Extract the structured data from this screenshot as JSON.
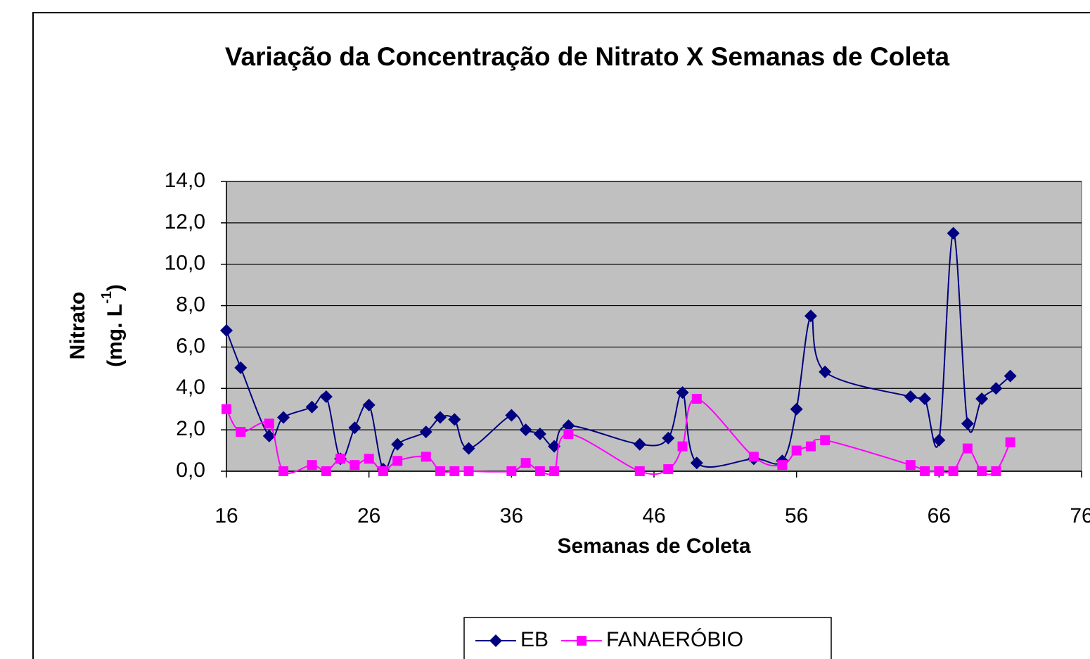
{
  "chart_data": {
    "type": "line",
    "title": "Variação da Concentração de Nitrato X Semanas de Coleta",
    "xlabel": "Semanas de Coleta",
    "ylabel": "Nitrato",
    "ylabel_unit": "(mg. L",
    "ylabel_sup": "-1",
    "ylabel_close": ")",
    "x": [
      16,
      17,
      19,
      20,
      22,
      23,
      24,
      25,
      26,
      27,
      28,
      30,
      31,
      32,
      33,
      36,
      37,
      38,
      39,
      40,
      45,
      47,
      48,
      49,
      53,
      55,
      56,
      57,
      58,
      64,
      65,
      66,
      67,
      68,
      69,
      70,
      71
    ],
    "series": [
      {
        "name": "EB",
        "color": "#000080",
        "marker": "diamond",
        "values": [
          6.8,
          5.0,
          1.7,
          2.6,
          3.1,
          3.6,
          0.6,
          2.1,
          3.2,
          0.1,
          1.3,
          1.9,
          2.6,
          2.5,
          1.1,
          2.7,
          2.0,
          1.8,
          1.2,
          2.2,
          1.3,
          1.6,
          3.8,
          0.4,
          0.6,
          0.5,
          3.0,
          7.5,
          4.8,
          3.6,
          3.5,
          1.5,
          11.5,
          2.3,
          3.5,
          4.0,
          4.6
        ]
      },
      {
        "name": "FANAERÓBIO",
        "color": "#ff00ff",
        "marker": "square",
        "values": [
          3.0,
          1.9,
          2.3,
          0.0,
          0.3,
          0.0,
          0.6,
          0.3,
          0.6,
          0.0,
          0.5,
          0.7,
          0.0,
          0.0,
          0.0,
          0.0,
          0.4,
          0.0,
          0.0,
          1.8,
          0.0,
          0.1,
          1.2,
          3.5,
          0.7,
          0.3,
          1.0,
          1.2,
          1.5,
          0.3,
          0.0,
          0.0,
          0.0,
          1.1,
          0.0,
          0.0,
          1.4
        ]
      }
    ],
    "xlim": [
      16,
      76
    ],
    "xticks": [
      16,
      26,
      36,
      46,
      56,
      66,
      76
    ],
    "ylim": [
      0,
      14
    ],
    "yticks": [
      {
        "value": 0,
        "label": "0,0"
      },
      {
        "value": 2,
        "label": "2,0"
      },
      {
        "value": 4,
        "label": "4,0"
      },
      {
        "value": 6,
        "label": "6,0"
      },
      {
        "value": 8,
        "label": "8,0"
      },
      {
        "value": 10,
        "label": "10,0"
      },
      {
        "value": 12,
        "label": "12,0"
      },
      {
        "value": 14,
        "label": "14,0"
      }
    ],
    "grid": true,
    "plot_background": "#c0c0c0",
    "legend": "bottom"
  }
}
